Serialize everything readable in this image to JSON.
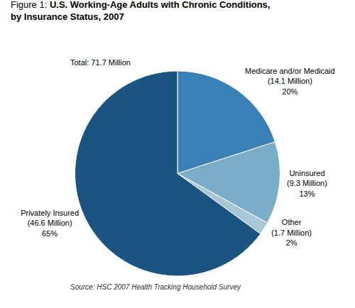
{
  "chart_data": {
    "type": "pie",
    "title": "U.S. Working-Age Adults with Chronic Conditions,\nby Insurance Status, 2007",
    "annotations": [
      "Figure 1:",
      "Total: 71.7 Million",
      "Source: HSC 2007 Health Tracking Household Survey"
    ],
    "categories": [
      "Medicare and/or Medicaid\n(14.1 Million)",
      "Uninsured\n(9.3 Million)",
      "Other\n(1.7 Million)",
      "Privately Insured\n(46.6 Million)"
    ],
    "values": [
      20,
      13,
      2,
      65
    ],
    "value_labels": [
      "20%",
      "13%",
      "2%",
      "65%"
    ],
    "colors": [
      "#3a7fb5",
      "#7aaec8",
      "#a8c8d8",
      "#1a5480"
    ]
  }
}
